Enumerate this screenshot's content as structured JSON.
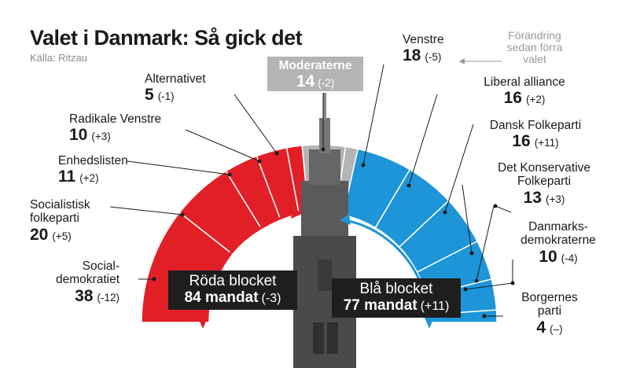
{
  "title": "Valet i Danmark: Så gick det",
  "source": "Källa: Ritzau",
  "note": "Förändring sedan förra valet",
  "colors": {
    "red": "#e21f26",
    "blue": "#1d95d8",
    "grey": "#b4b4b4",
    "dark": "#1e1e1e"
  },
  "chart_data": {
    "type": "pie",
    "subtype": "parliament-semicircle",
    "total_seats": 179,
    "slices": [
      {
        "name": "Social-demokratiet",
        "seats": 38,
        "change": "-12",
        "bloc": "red"
      },
      {
        "name": "Socialistisk folkeparti",
        "seats": 20,
        "change": "+5",
        "bloc": "red"
      },
      {
        "name": "Enhedslisten",
        "seats": 11,
        "change": "+2",
        "bloc": "red"
      },
      {
        "name": "Radikale Venstre",
        "seats": 10,
        "change": "+3",
        "bloc": "red"
      },
      {
        "name": "Alternativet",
        "seats": 5,
        "change": "-1",
        "bloc": "red"
      },
      {
        "name": "Moderaterne",
        "seats": 14,
        "change": "-2",
        "bloc": "grey"
      },
      {
        "name": "",
        "seats": 4,
        "change": "",
        "bloc": "grey"
      },
      {
        "name": "Venstre",
        "seats": 18,
        "change": "-5",
        "bloc": "blue"
      },
      {
        "name": "Liberal alliance",
        "seats": 16,
        "change": "+2",
        "bloc": "blue"
      },
      {
        "name": "Dansk Folkeparti",
        "seats": 16,
        "change": "+11",
        "bloc": "blue"
      },
      {
        "name": "Det Konservative Folkeparti",
        "seats": 13,
        "change": "+3",
        "bloc": "blue"
      },
      {
        "name": "Danmarks-demokraterne",
        "seats": 10,
        "change": "-4",
        "bloc": "blue"
      },
      {
        "name": "Borgernes parti",
        "seats": 4,
        "change": "–",
        "bloc": "blue"
      }
    ],
    "blocs": [
      {
        "name": "Röda blocket",
        "seats": "84 mandat",
        "change": "-3"
      },
      {
        "name": "Blå blocket",
        "seats": "77 mandat",
        "change": "+11"
      }
    ]
  },
  "labels": {
    "socdem": {
      "name1": "Social-",
      "name2": "demokratiet",
      "seats": "38",
      "chg": "(-12)"
    },
    "sf": {
      "name1": "Socialistisk",
      "name2": "folkeparti",
      "seats": "20",
      "chg": "(+5)"
    },
    "enh": {
      "name": "Enhedslisten",
      "seats": "11",
      "chg": "(+2)"
    },
    "radv": {
      "name": "Radikale Venstre",
      "seats": "10",
      "chg": "(+3)"
    },
    "alt": {
      "name": "Alternativet",
      "seats": "5",
      "chg": "(-1)"
    },
    "mod": {
      "name": "Moderaterne",
      "seats": "14",
      "chg": "(-2)"
    },
    "ven": {
      "name": "Venstre",
      "seats": "18",
      "chg": "(-5)"
    },
    "la": {
      "name": "Liberal alliance",
      "seats": "16",
      "chg": "(+2)"
    },
    "df": {
      "name": "Dansk Folkeparti",
      "seats": "16",
      "chg": "(+11)"
    },
    "dkf": {
      "name1": "Det Konservative",
      "name2": "Folkeparti",
      "seats": "13",
      "chg": "(+3)"
    },
    "dd": {
      "name1": "Danmarks-",
      "name2": "demokraterne",
      "seats": "10",
      "chg": "(-4)"
    },
    "bp": {
      "name1": "Borgernes",
      "name2": "parti",
      "seats": "4",
      "chg": "(–)"
    }
  }
}
